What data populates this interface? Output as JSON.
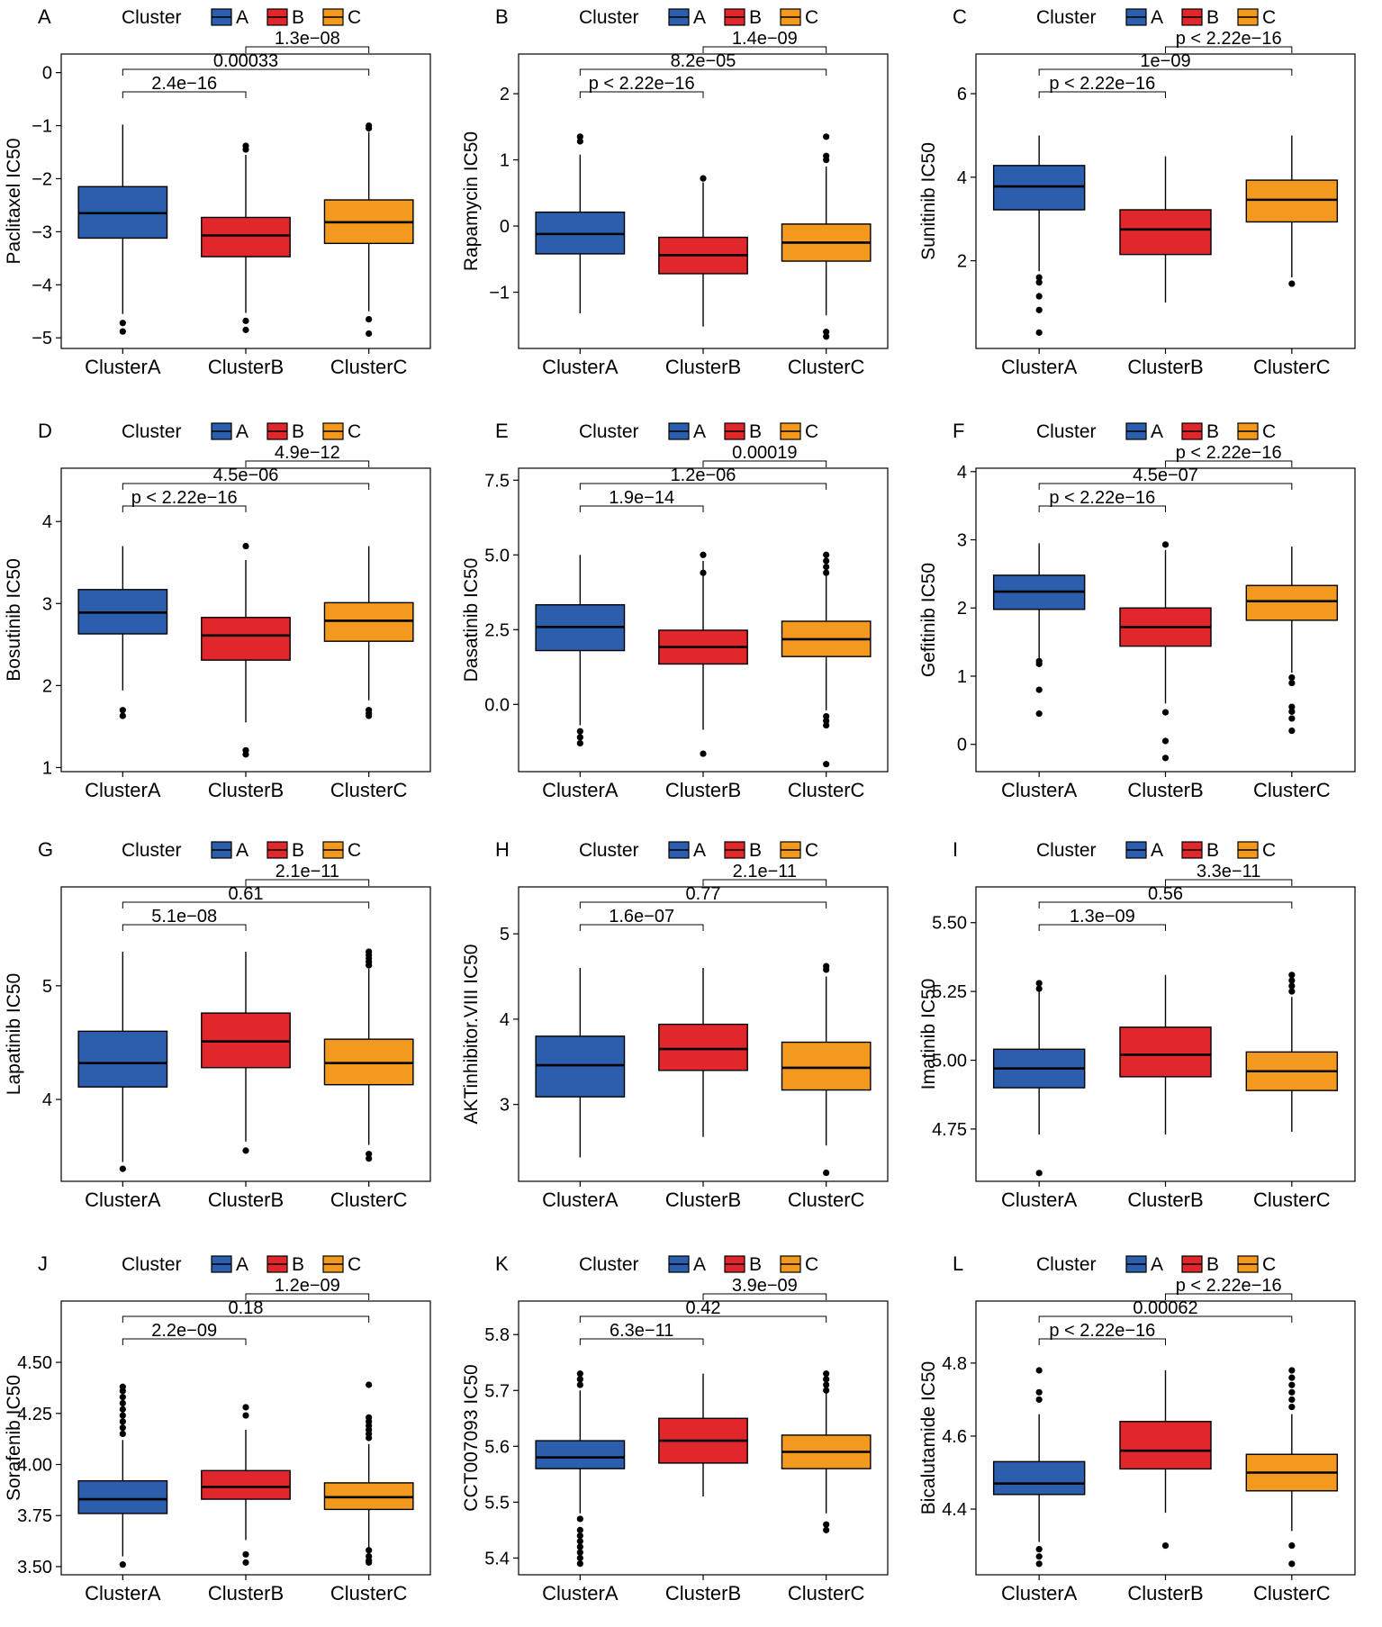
{
  "figure": {
    "colors": {
      "A": "#2b5fad",
      "B": "#e1262c",
      "C": "#f39a1e"
    },
    "legend_title": "Cluster",
    "legend_labels": [
      "A",
      "B",
      "C"
    ],
    "x_tick_labels": [
      "ClusterA",
      "ClusterB",
      "ClusterC"
    ]
  },
  "chart_data": [
    {
      "panel": "A",
      "type": "box",
      "ylabel": "Paclitaxel IC50",
      "ylim": [
        -5.2,
        0.35
      ],
      "yticks": [
        0,
        -1,
        -2,
        -3,
        -4,
        -5
      ],
      "ytick_labels": [
        "0",
        "−1",
        "−2",
        "−3",
        "−4",
        "−5"
      ],
      "groups": [
        {
          "name": "ClusterA",
          "q1": -3.12,
          "median": -2.65,
          "q3": -2.15,
          "whisker_low": -4.55,
          "whisker_high": -0.98,
          "outliers": [
            -4.72,
            -4.88
          ]
        },
        {
          "name": "ClusterB",
          "q1": -3.47,
          "median": -3.07,
          "q3": -2.73,
          "whisker_low": -4.53,
          "whisker_high": -1.55,
          "outliers": [
            -1.38,
            -1.45,
            -4.68,
            -4.85
          ]
        },
        {
          "name": "ClusterC",
          "q1": -3.22,
          "median": -2.82,
          "q3": -2.4,
          "whisker_low": -4.5,
          "whisker_high": -1.12,
          "outliers": [
            -1.0,
            -1.05,
            -4.65,
            -4.92
          ]
        }
      ],
      "comparisons": [
        {
          "groups": [
            "ClusterA",
            "ClusterB"
          ],
          "label": "2.4e−16"
        },
        {
          "groups": [
            "ClusterA",
            "ClusterC"
          ],
          "label": "0.00033"
        },
        {
          "groups": [
            "ClusterB",
            "ClusterC"
          ],
          "label": "1.3e−08"
        }
      ]
    },
    {
      "panel": "B",
      "type": "box",
      "ylabel": "Rapamycin IC50",
      "ylim": [
        -1.85,
        2.6
      ],
      "yticks": [
        2,
        1,
        0,
        -1
      ],
      "ytick_labels": [
        "2",
        "1",
        "0",
        "−1"
      ],
      "groups": [
        {
          "name": "ClusterA",
          "q1": -0.42,
          "median": -0.12,
          "q3": 0.21,
          "whisker_low": -1.32,
          "whisker_high": 1.08,
          "outliers": [
            1.28,
            1.35
          ]
        },
        {
          "name": "ClusterB",
          "q1": -0.72,
          "median": -0.44,
          "q3": -0.17,
          "whisker_low": -1.52,
          "whisker_high": 0.66,
          "outliers": [
            0.72
          ]
        },
        {
          "name": "ClusterC",
          "q1": -0.53,
          "median": -0.25,
          "q3": 0.03,
          "whisker_low": -1.35,
          "whisker_high": 0.9,
          "outliers": [
            1.0,
            1.06,
            1.35,
            -1.6,
            -1.67
          ]
        }
      ],
      "comparisons": [
        {
          "groups": [
            "ClusterA",
            "ClusterB"
          ],
          "label": "p < 2.22e−16"
        },
        {
          "groups": [
            "ClusterA",
            "ClusterC"
          ],
          "label": "8.2e−05"
        },
        {
          "groups": [
            "ClusterB",
            "ClusterC"
          ],
          "label": "1.4e−09"
        }
      ]
    },
    {
      "panel": "C",
      "type": "box",
      "ylabel": "Sunitinib IC50",
      "ylim": [
        -0.1,
        6.95
      ],
      "yticks": [
        6,
        4,
        2
      ],
      "ytick_labels": [
        "6",
        "4",
        "2"
      ],
      "groups": [
        {
          "name": "ClusterA",
          "q1": 3.22,
          "median": 3.78,
          "q3": 4.28,
          "whisker_low": 1.75,
          "whisker_high": 5.0,
          "outliers": [
            1.6,
            1.48,
            1.15,
            0.82,
            0.28
          ]
        },
        {
          "name": "ClusterB",
          "q1": 2.15,
          "median": 2.75,
          "q3": 3.22,
          "whisker_low": 1.0,
          "whisker_high": 4.5,
          "outliers": []
        },
        {
          "name": "ClusterC",
          "q1": 2.93,
          "median": 3.46,
          "q3": 3.93,
          "whisker_low": 1.6,
          "whisker_high": 5.0,
          "outliers": [
            1.45
          ]
        }
      ],
      "comparisons": [
        {
          "groups": [
            "ClusterA",
            "ClusterB"
          ],
          "label": "p < 2.22e−16"
        },
        {
          "groups": [
            "ClusterA",
            "ClusterC"
          ],
          "label": "1e−09"
        },
        {
          "groups": [
            "ClusterB",
            "ClusterC"
          ],
          "label": "p < 2.22e−16"
        }
      ]
    },
    {
      "panel": "D",
      "type": "box",
      "ylabel": "Bosutinib IC50",
      "ylim": [
        0.95,
        4.65
      ],
      "yticks": [
        4,
        3,
        2,
        1
      ],
      "ytick_labels": [
        "4",
        "3",
        "2",
        "1"
      ],
      "groups": [
        {
          "name": "ClusterA",
          "q1": 2.63,
          "median": 2.89,
          "q3": 3.17,
          "whisker_low": 1.94,
          "whisker_high": 3.7,
          "outliers": [
            1.7,
            1.63
          ]
        },
        {
          "name": "ClusterB",
          "q1": 2.31,
          "median": 2.61,
          "q3": 2.83,
          "whisker_low": 1.55,
          "whisker_high": 3.53,
          "outliers": [
            3.7,
            1.21,
            1.16
          ]
        },
        {
          "name": "ClusterC",
          "q1": 2.54,
          "median": 2.79,
          "q3": 3.01,
          "whisker_low": 1.82,
          "whisker_high": 3.7,
          "outliers": [
            1.7,
            1.66,
            1.63
          ]
        }
      ],
      "comparisons": [
        {
          "groups": [
            "ClusterA",
            "ClusterB"
          ],
          "label": "p < 2.22e−16"
        },
        {
          "groups": [
            "ClusterA",
            "ClusterC"
          ],
          "label": "4.5e−06"
        },
        {
          "groups": [
            "ClusterB",
            "ClusterC"
          ],
          "label": "4.9e−12"
        }
      ]
    },
    {
      "panel": "E",
      "type": "box",
      "ylabel": "Dasatinib IC50",
      "ylim": [
        -2.25,
        7.9
      ],
      "yticks": [
        7.5,
        5.0,
        2.5,
        0.0
      ],
      "ytick_labels": [
        "7.5",
        "5.0",
        "2.5",
        "0.0"
      ],
      "groups": [
        {
          "name": "ClusterA",
          "q1": 1.8,
          "median": 2.59,
          "q3": 3.33,
          "whisker_low": -0.7,
          "whisker_high": 5.0,
          "outliers": [
            -0.9,
            -1.1,
            -1.3
          ]
        },
        {
          "name": "ClusterB",
          "q1": 1.35,
          "median": 1.92,
          "q3": 2.48,
          "whisker_low": -0.85,
          "whisker_high": 4.8,
          "outliers": [
            5.0,
            4.4,
            -1.65
          ]
        },
        {
          "name": "ClusterC",
          "q1": 1.6,
          "median": 2.18,
          "q3": 2.78,
          "whisker_low": -0.2,
          "whisker_high": 4.55,
          "outliers": [
            5.0,
            4.8,
            4.6,
            4.4,
            -0.4,
            -0.55,
            -0.7,
            -2.0
          ]
        }
      ],
      "comparisons": [
        {
          "groups": [
            "ClusterA",
            "ClusterB"
          ],
          "label": "1.9e−14"
        },
        {
          "groups": [
            "ClusterA",
            "ClusterC"
          ],
          "label": "1.2e−06"
        },
        {
          "groups": [
            "ClusterB",
            "ClusterC"
          ],
          "label": "0.00019"
        }
      ]
    },
    {
      "panel": "F",
      "type": "box",
      "ylabel": "Gefitinib IC50",
      "ylim": [
        -0.4,
        4.05
      ],
      "yticks": [
        4,
        3,
        2,
        1,
        0
      ],
      "ytick_labels": [
        "4",
        "3",
        "2",
        "1",
        "0"
      ],
      "groups": [
        {
          "name": "ClusterA",
          "q1": 1.98,
          "median": 2.24,
          "q3": 2.48,
          "whisker_low": 1.25,
          "whisker_high": 2.95,
          "outliers": [
            1.22,
            1.18,
            0.8,
            0.45
          ]
        },
        {
          "name": "ClusterB",
          "q1": 1.44,
          "median": 1.72,
          "q3": 2.0,
          "whisker_low": 0.6,
          "whisker_high": 2.85,
          "outliers": [
            2.93,
            0.47,
            0.05,
            -0.2
          ]
        },
        {
          "name": "ClusterC",
          "q1": 1.82,
          "median": 2.1,
          "q3": 2.33,
          "whisker_low": 1.05,
          "whisker_high": 2.9,
          "outliers": [
            0.98,
            0.9,
            0.55,
            0.48,
            0.38,
            0.2
          ]
        }
      ],
      "comparisons": [
        {
          "groups": [
            "ClusterA",
            "ClusterB"
          ],
          "label": "p < 2.22e−16"
        },
        {
          "groups": [
            "ClusterA",
            "ClusterC"
          ],
          "label": "4.5e−07"
        },
        {
          "groups": [
            "ClusterB",
            "ClusterC"
          ],
          "label": "p < 2.22e−16"
        }
      ]
    },
    {
      "panel": "G",
      "type": "box",
      "ylabel": "Lapatinib IC50",
      "ylim": [
        3.28,
        5.87
      ],
      "yticks": [
        5,
        4
      ],
      "ytick_labels": [
        "5",
        "4"
      ],
      "groups": [
        {
          "name": "ClusterA",
          "q1": 4.11,
          "median": 4.32,
          "q3": 4.6,
          "whisker_low": 3.45,
          "whisker_high": 5.3,
          "outliers": [
            3.39
          ]
        },
        {
          "name": "ClusterB",
          "q1": 4.28,
          "median": 4.51,
          "q3": 4.76,
          "whisker_low": 3.63,
          "whisker_high": 5.3,
          "outliers": [
            3.55
          ]
        },
        {
          "name": "ClusterC",
          "q1": 4.13,
          "median": 4.32,
          "q3": 4.53,
          "whisker_low": 3.6,
          "whisker_high": 5.15,
          "outliers": [
            5.3,
            5.27,
            5.24,
            5.21,
            5.18,
            3.52,
            3.48
          ]
        }
      ],
      "comparisons": [
        {
          "groups": [
            "ClusterA",
            "ClusterB"
          ],
          "label": "5.1e−08"
        },
        {
          "groups": [
            "ClusterA",
            "ClusterC"
          ],
          "label": "0.61"
        },
        {
          "groups": [
            "ClusterB",
            "ClusterC"
          ],
          "label": "2.1e−11"
        }
      ]
    },
    {
      "panel": "H",
      "type": "box",
      "ylabel": "AKTinhibitor.VIII IC50",
      "ylim": [
        2.1,
        5.55
      ],
      "yticks": [
        5,
        4,
        3
      ],
      "ytick_labels": [
        "5",
        "4",
        "3"
      ],
      "groups": [
        {
          "name": "ClusterA",
          "q1": 3.09,
          "median": 3.46,
          "q3": 3.8,
          "whisker_low": 2.38,
          "whisker_high": 4.6,
          "outliers": []
        },
        {
          "name": "ClusterB",
          "q1": 3.4,
          "median": 3.65,
          "q3": 3.94,
          "whisker_low": 2.62,
          "whisker_high": 4.6,
          "outliers": []
        },
        {
          "name": "ClusterC",
          "q1": 3.17,
          "median": 3.43,
          "q3": 3.73,
          "whisker_low": 2.52,
          "whisker_high": 4.5,
          "outliers": [
            4.62,
            4.58,
            2.2
          ]
        }
      ],
      "comparisons": [
        {
          "groups": [
            "ClusterA",
            "ClusterB"
          ],
          "label": "1.6e−07"
        },
        {
          "groups": [
            "ClusterA",
            "ClusterC"
          ],
          "label": "0.77"
        },
        {
          "groups": [
            "ClusterB",
            "ClusterC"
          ],
          "label": "2.1e−11"
        }
      ]
    },
    {
      "panel": "I",
      "type": "box",
      "ylabel": "Imatinib IC50",
      "ylim": [
        4.56,
        5.63
      ],
      "yticks": [
        5.5,
        5.25,
        5.0,
        4.75
      ],
      "ytick_labels": [
        "5.50",
        "5.25",
        "5.00",
        "4.75"
      ],
      "groups": [
        {
          "name": "ClusterA",
          "q1": 4.9,
          "median": 4.97,
          "q3": 5.04,
          "whisker_low": 4.73,
          "whisker_high": 5.25,
          "outliers": [
            5.28,
            5.26,
            4.59
          ]
        },
        {
          "name": "ClusterB",
          "q1": 4.94,
          "median": 5.02,
          "q3": 5.12,
          "whisker_low": 4.73,
          "whisker_high": 5.31,
          "outliers": []
        },
        {
          "name": "ClusterC",
          "q1": 4.89,
          "median": 4.96,
          "q3": 5.03,
          "whisker_low": 4.74,
          "whisker_high": 5.23,
          "outliers": [
            5.31,
            5.29,
            5.27,
            5.25
          ]
        }
      ],
      "comparisons": [
        {
          "groups": [
            "ClusterA",
            "ClusterB"
          ],
          "label": "1.3e−09"
        },
        {
          "groups": [
            "ClusterA",
            "ClusterC"
          ],
          "label": "0.56"
        },
        {
          "groups": [
            "ClusterB",
            "ClusterC"
          ],
          "label": "3.3e−11"
        }
      ]
    },
    {
      "panel": "J",
      "type": "box",
      "ylabel": "Sorafenib IC50",
      "ylim": [
        3.46,
        4.8
      ],
      "yticks": [
        4.5,
        4.25,
        4.0,
        3.75,
        3.5
      ],
      "ytick_labels": [
        "4.50",
        "4.25",
        "4.00",
        "3.75",
        "3.50"
      ],
      "groups": [
        {
          "name": "ClusterA",
          "q1": 3.76,
          "median": 3.83,
          "q3": 3.92,
          "whisker_low": 3.55,
          "whisker_high": 4.12,
          "outliers": [
            4.38,
            4.36,
            4.33,
            4.3,
            4.27,
            4.24,
            4.21,
            4.18,
            4.15,
            3.51
          ]
        },
        {
          "name": "ClusterB",
          "q1": 3.83,
          "median": 3.89,
          "q3": 3.97,
          "whisker_low": 3.63,
          "whisker_high": 4.17,
          "outliers": [
            4.28,
            4.24,
            3.56,
            3.52
          ]
        },
        {
          "name": "ClusterC",
          "q1": 3.78,
          "median": 3.84,
          "q3": 3.91,
          "whisker_low": 3.59,
          "whisker_high": 4.1,
          "outliers": [
            4.39,
            4.23,
            4.21,
            4.19,
            4.17,
            4.15,
            4.13,
            3.58,
            3.55,
            3.53,
            3.52
          ]
        }
      ],
      "comparisons": [
        {
          "groups": [
            "ClusterA",
            "ClusterB"
          ],
          "label": "2.2e−09"
        },
        {
          "groups": [
            "ClusterA",
            "ClusterC"
          ],
          "label": "0.18"
        },
        {
          "groups": [
            "ClusterB",
            "ClusterC"
          ],
          "label": "1.2e−09"
        }
      ]
    },
    {
      "panel": "K",
      "type": "box",
      "ylabel": "CCT007093 IC50",
      "ylim": [
        5.37,
        5.86
      ],
      "yticks": [
        5.8,
        5.7,
        5.6,
        5.5,
        5.4
      ],
      "ytick_labels": [
        "5.8",
        "5.7",
        "5.6",
        "5.5",
        "5.4"
      ],
      "groups": [
        {
          "name": "ClusterA",
          "q1": 5.56,
          "median": 5.58,
          "q3": 5.61,
          "whisker_low": 5.48,
          "whisker_high": 5.7,
          "outliers": [
            5.73,
            5.72,
            5.71,
            5.47,
            5.45,
            5.44,
            5.43,
            5.42,
            5.41,
            5.4,
            5.39
          ]
        },
        {
          "name": "ClusterB",
          "q1": 5.57,
          "median": 5.61,
          "q3": 5.65,
          "whisker_low": 5.51,
          "whisker_high": 5.73,
          "outliers": []
        },
        {
          "name": "ClusterC",
          "q1": 5.56,
          "median": 5.59,
          "q3": 5.62,
          "whisker_low": 5.48,
          "whisker_high": 5.7,
          "outliers": [
            5.73,
            5.72,
            5.71,
            5.7,
            5.46,
            5.45
          ]
        }
      ],
      "comparisons": [
        {
          "groups": [
            "ClusterA",
            "ClusterB"
          ],
          "label": "6.3e−11"
        },
        {
          "groups": [
            "ClusterA",
            "ClusterC"
          ],
          "label": "0.42"
        },
        {
          "groups": [
            "ClusterB",
            "ClusterC"
          ],
          "label": "3.9e−09"
        }
      ]
    },
    {
      "panel": "L",
      "type": "box",
      "ylabel": "Bicalutamide IC50",
      "ylim": [
        4.22,
        4.97
      ],
      "yticks": [
        4.8,
        4.6,
        4.4
      ],
      "ytick_labels": [
        "4.8",
        "4.6",
        "4.4"
      ],
      "groups": [
        {
          "name": "ClusterA",
          "q1": 4.44,
          "median": 4.47,
          "q3": 4.53,
          "whisker_low": 4.31,
          "whisker_high": 4.66,
          "outliers": [
            4.78,
            4.72,
            4.7,
            4.29,
            4.27,
            4.25
          ]
        },
        {
          "name": "ClusterB",
          "q1": 4.51,
          "median": 4.56,
          "q3": 4.64,
          "whisker_low": 4.39,
          "whisker_high": 4.78,
          "outliers": [
            4.3
          ]
        },
        {
          "name": "ClusterC",
          "q1": 4.45,
          "median": 4.5,
          "q3": 4.55,
          "whisker_low": 4.34,
          "whisker_high": 4.66,
          "outliers": [
            4.78,
            4.76,
            4.74,
            4.72,
            4.7,
            4.68,
            4.3,
            4.25
          ]
        }
      ],
      "comparisons": [
        {
          "groups": [
            "ClusterA",
            "ClusterB"
          ],
          "label": "p < 2.22e−16"
        },
        {
          "groups": [
            "ClusterA",
            "ClusterC"
          ],
          "label": "0.00062"
        },
        {
          "groups": [
            "ClusterB",
            "ClusterC"
          ],
          "label": "p < 2.22e−16"
        }
      ]
    }
  ]
}
